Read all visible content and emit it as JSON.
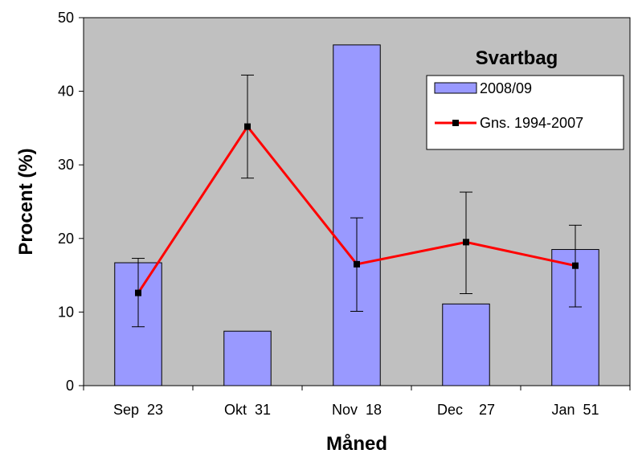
{
  "chart_data": {
    "type": "bar",
    "title": "Svartbag",
    "xlabel": "Måned",
    "ylabel": "Procent (%)",
    "categories": [
      "Sep  23",
      "Okt  31",
      "Nov  18",
      "Dec    27",
      "Jan  51"
    ],
    "ylim": [
      0,
      50
    ],
    "yticks": [
      0,
      10,
      20,
      30,
      40,
      50
    ],
    "grid": false,
    "legend_position": "top-right",
    "series": [
      {
        "name": "2008/09",
        "type": "bar",
        "values": [
          16.7,
          7.4,
          46.3,
          11.1,
          18.5
        ],
        "color": "#9999ff"
      },
      {
        "name": "Gns. 1994-2007",
        "type": "line",
        "values": [
          12.6,
          35.2,
          16.5,
          19.5,
          16.3
        ],
        "error_low": [
          8.0,
          28.2,
          10.1,
          12.5,
          10.7
        ],
        "error_high": [
          17.3,
          42.2,
          22.8,
          26.3,
          21.8
        ],
        "color": "#ff0000"
      }
    ],
    "plot_background": "#c0c0c0"
  }
}
